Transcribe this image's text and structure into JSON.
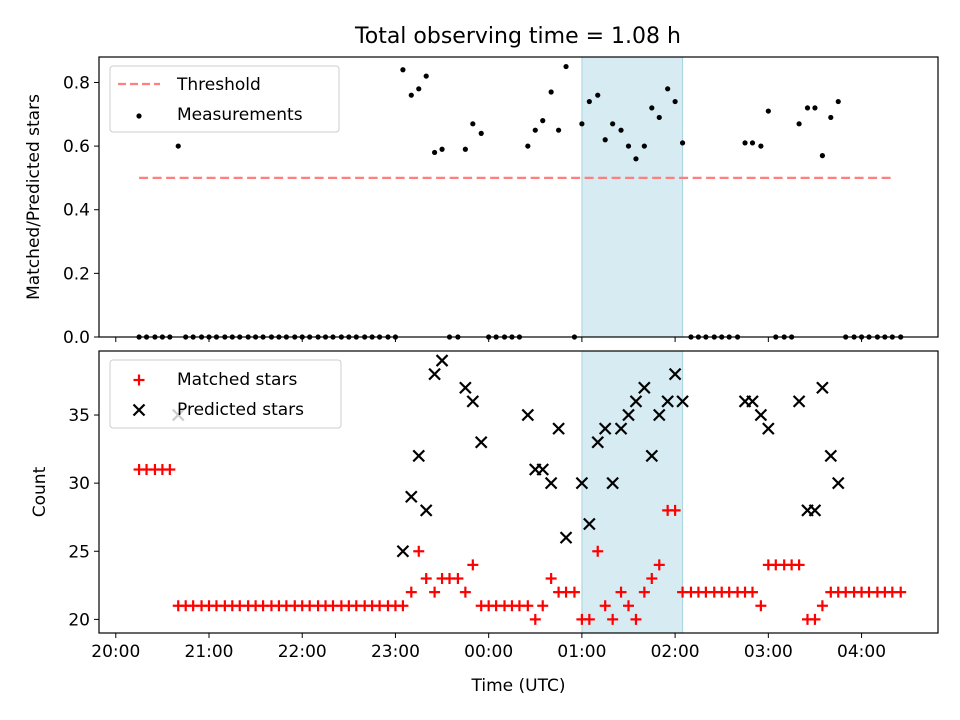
{
  "title": "Total observing time = 1.08 h",
  "colors": {
    "threshold": "#ff7f7f",
    "measurement": "#000000",
    "matched": "#ff0000",
    "predicted": "#000000",
    "highlight": "#add8e6"
  },
  "chart_data": [
    {
      "type": "scatter",
      "ylabel": "Matched/Predicted stars",
      "ylim": [
        0,
        0.88
      ],
      "yticks": [
        "0.0",
        "0.2",
        "0.4",
        "0.6",
        "0.8"
      ],
      "xlim": [
        19.82,
        28.82
      ],
      "highlight_span": [
        25.0,
        26.08
      ],
      "legend": {
        "placement": "top-left",
        "entries": [
          "Threshold",
          "Measurements"
        ]
      },
      "threshold": {
        "name": "Threshold",
        "y": 0.5,
        "x_range": [
          20.25,
          28.36
        ]
      },
      "series": [
        {
          "name": "Measurements",
          "points": [
            [
              20.25,
              0
            ],
            [
              20.33,
              0
            ],
            [
              20.42,
              0
            ],
            [
              20.5,
              0
            ],
            [
              20.58,
              0
            ],
            [
              20.67,
              0.6
            ],
            [
              20.75,
              0
            ],
            [
              20.83,
              0
            ],
            [
              20.92,
              0
            ],
            [
              21.0,
              0
            ],
            [
              21.08,
              0
            ],
            [
              21.17,
              0
            ],
            [
              21.25,
              0
            ],
            [
              21.33,
              0
            ],
            [
              21.42,
              0
            ],
            [
              21.5,
              0
            ],
            [
              21.58,
              0
            ],
            [
              21.67,
              0
            ],
            [
              21.75,
              0
            ],
            [
              21.83,
              0
            ],
            [
              21.92,
              0
            ],
            [
              22.0,
              0
            ],
            [
              22.08,
              0
            ],
            [
              22.17,
              0
            ],
            [
              22.25,
              0
            ],
            [
              22.33,
              0
            ],
            [
              22.42,
              0
            ],
            [
              22.5,
              0
            ],
            [
              22.58,
              0
            ],
            [
              22.67,
              0
            ],
            [
              22.75,
              0
            ],
            [
              22.83,
              0
            ],
            [
              22.92,
              0
            ],
            [
              23.0,
              0
            ],
            [
              23.08,
              0.84
            ],
            [
              23.17,
              0.76
            ],
            [
              23.25,
              0.78
            ],
            [
              23.33,
              0.82
            ],
            [
              23.42,
              0.58
            ],
            [
              23.5,
              0.59
            ],
            [
              23.58,
              0
            ],
            [
              23.67,
              0
            ],
            [
              23.75,
              0.59
            ],
            [
              23.83,
              0.67
            ],
            [
              23.92,
              0.64
            ],
            [
              24.0,
              0
            ],
            [
              24.08,
              0
            ],
            [
              24.17,
              0
            ],
            [
              24.25,
              0
            ],
            [
              24.33,
              0
            ],
            [
              24.42,
              0.6
            ],
            [
              24.5,
              0.65
            ],
            [
              24.58,
              0.68
            ],
            [
              24.67,
              0.77
            ],
            [
              24.75,
              0.65
            ],
            [
              24.83,
              0.85
            ],
            [
              24.92,
              0
            ],
            [
              25.0,
              0.67
            ],
            [
              25.08,
              0.74
            ],
            [
              25.17,
              0.76
            ],
            [
              25.25,
              0.62
            ],
            [
              25.33,
              0.67
            ],
            [
              25.42,
              0.65
            ],
            [
              25.5,
              0.6
            ],
            [
              25.58,
              0.56
            ],
            [
              25.67,
              0.6
            ],
            [
              25.75,
              0.72
            ],
            [
              25.83,
              0.69
            ],
            [
              25.92,
              0.78
            ],
            [
              26.0,
              0.74
            ],
            [
              26.08,
              0.61
            ],
            [
              26.17,
              0
            ],
            [
              26.25,
              0
            ],
            [
              26.33,
              0
            ],
            [
              26.42,
              0
            ],
            [
              26.5,
              0
            ],
            [
              26.58,
              0
            ],
            [
              26.67,
              0
            ],
            [
              26.75,
              0.61
            ],
            [
              26.83,
              0.61
            ],
            [
              26.92,
              0.6
            ],
            [
              27.0,
              0.71
            ],
            [
              27.08,
              0
            ],
            [
              27.17,
              0
            ],
            [
              27.25,
              0
            ],
            [
              27.33,
              0.67
            ],
            [
              27.42,
              0.72
            ],
            [
              27.5,
              0.72
            ],
            [
              27.58,
              0.57
            ],
            [
              27.67,
              0.69
            ],
            [
              27.75,
              0.74
            ],
            [
              27.83,
              0
            ],
            [
              27.92,
              0
            ],
            [
              28.0,
              0
            ],
            [
              28.08,
              0
            ],
            [
              28.17,
              0
            ],
            [
              28.25,
              0
            ],
            [
              28.33,
              0
            ],
            [
              28.42,
              0
            ]
          ]
        }
      ]
    },
    {
      "type": "scatter",
      "xlabel": "Time (UTC)",
      "ylabel": "Count",
      "ylim": [
        19,
        39.7
      ],
      "yticks": [
        "20",
        "25",
        "30",
        "35"
      ],
      "xlim": [
        19.82,
        28.82
      ],
      "xticks": [
        "20:00",
        "21:00",
        "22:00",
        "23:00",
        "00:00",
        "01:00",
        "02:00",
        "03:00",
        "04:00"
      ],
      "highlight_span": [
        25.0,
        26.08
      ],
      "legend": {
        "placement": "top-left",
        "entries": [
          "Matched stars",
          "Predicted stars"
        ]
      },
      "series": [
        {
          "name": "Matched stars",
          "marker": "+",
          "points": [
            [
              20.25,
              31
            ],
            [
              20.33,
              31
            ],
            [
              20.42,
              31
            ],
            [
              20.5,
              31
            ],
            [
              20.58,
              31
            ],
            [
              20.67,
              21
            ],
            [
              20.75,
              21
            ],
            [
              20.83,
              21
            ],
            [
              20.92,
              21
            ],
            [
              21.0,
              21
            ],
            [
              21.08,
              21
            ],
            [
              21.17,
              21
            ],
            [
              21.25,
              21
            ],
            [
              21.33,
              21
            ],
            [
              21.42,
              21
            ],
            [
              21.5,
              21
            ],
            [
              21.58,
              21
            ],
            [
              21.67,
              21
            ],
            [
              21.75,
              21
            ],
            [
              21.83,
              21
            ],
            [
              21.92,
              21
            ],
            [
              22.0,
              21
            ],
            [
              22.08,
              21
            ],
            [
              22.17,
              21
            ],
            [
              22.25,
              21
            ],
            [
              22.33,
              21
            ],
            [
              22.42,
              21
            ],
            [
              22.5,
              21
            ],
            [
              22.58,
              21
            ],
            [
              22.67,
              21
            ],
            [
              22.75,
              21
            ],
            [
              22.83,
              21
            ],
            [
              22.92,
              21
            ],
            [
              23.0,
              21
            ],
            [
              23.08,
              21
            ],
            [
              23.17,
              22
            ],
            [
              23.25,
              25
            ],
            [
              23.33,
              23
            ],
            [
              23.42,
              22
            ],
            [
              23.5,
              23
            ],
            [
              23.58,
              23
            ],
            [
              23.67,
              23
            ],
            [
              23.75,
              22
            ],
            [
              23.83,
              24
            ],
            [
              23.92,
              21
            ],
            [
              24.0,
              21
            ],
            [
              24.08,
              21
            ],
            [
              24.17,
              21
            ],
            [
              24.25,
              21
            ],
            [
              24.33,
              21
            ],
            [
              24.42,
              21
            ],
            [
              24.5,
              20
            ],
            [
              24.58,
              21
            ],
            [
              24.67,
              23
            ],
            [
              24.75,
              22
            ],
            [
              24.83,
              22
            ],
            [
              24.92,
              22
            ],
            [
              25.0,
              20
            ],
            [
              25.08,
              20
            ],
            [
              25.17,
              25
            ],
            [
              25.25,
              21
            ],
            [
              25.33,
              20
            ],
            [
              25.42,
              22
            ],
            [
              25.5,
              21
            ],
            [
              25.58,
              20
            ],
            [
              25.67,
              22
            ],
            [
              25.75,
              23
            ],
            [
              25.83,
              24
            ],
            [
              25.92,
              28
            ],
            [
              26.0,
              28
            ],
            [
              26.08,
              22
            ],
            [
              26.17,
              22
            ],
            [
              26.25,
              22
            ],
            [
              26.33,
              22
            ],
            [
              26.42,
              22
            ],
            [
              26.5,
              22
            ],
            [
              26.58,
              22
            ],
            [
              26.67,
              22
            ],
            [
              26.75,
              22
            ],
            [
              26.83,
              22
            ],
            [
              26.92,
              21
            ],
            [
              27.0,
              24
            ],
            [
              27.08,
              24
            ],
            [
              27.17,
              24
            ],
            [
              27.25,
              24
            ],
            [
              27.33,
              24
            ],
            [
              27.42,
              20
            ],
            [
              27.5,
              20
            ],
            [
              27.58,
              21
            ],
            [
              27.67,
              22
            ],
            [
              27.75,
              22
            ],
            [
              27.83,
              22
            ],
            [
              27.92,
              22
            ],
            [
              28.0,
              22
            ],
            [
              28.08,
              22
            ],
            [
              28.17,
              22
            ],
            [
              28.25,
              22
            ],
            [
              28.33,
              22
            ],
            [
              28.42,
              22
            ]
          ]
        },
        {
          "name": "Predicted stars",
          "marker": "x",
          "points": [
            [
              20.67,
              35
            ],
            [
              23.08,
              25
            ],
            [
              23.17,
              29
            ],
            [
              23.25,
              32
            ],
            [
              23.33,
              28
            ],
            [
              23.42,
              38
            ],
            [
              23.5,
              39
            ],
            [
              23.75,
              37
            ],
            [
              23.83,
              36
            ],
            [
              23.92,
              33
            ],
            [
              24.42,
              35
            ],
            [
              24.5,
              31
            ],
            [
              24.58,
              31
            ],
            [
              24.67,
              30
            ],
            [
              24.75,
              34
            ],
            [
              24.83,
              26
            ],
            [
              25.0,
              30
            ],
            [
              25.08,
              27
            ],
            [
              25.17,
              33
            ],
            [
              25.25,
              34
            ],
            [
              25.33,
              30
            ],
            [
              25.42,
              34
            ],
            [
              25.5,
              35
            ],
            [
              25.58,
              36
            ],
            [
              25.67,
              37
            ],
            [
              25.75,
              32
            ],
            [
              25.83,
              35
            ],
            [
              25.92,
              36
            ],
            [
              26.0,
              38
            ],
            [
              26.08,
              36
            ],
            [
              26.75,
              36
            ],
            [
              26.83,
              36
            ],
            [
              26.92,
              35
            ],
            [
              27.0,
              34
            ],
            [
              27.33,
              36
            ],
            [
              27.42,
              28
            ],
            [
              27.5,
              28
            ],
            [
              27.58,
              37
            ],
            [
              27.67,
              32
            ],
            [
              27.75,
              30
            ]
          ]
        }
      ]
    }
  ]
}
